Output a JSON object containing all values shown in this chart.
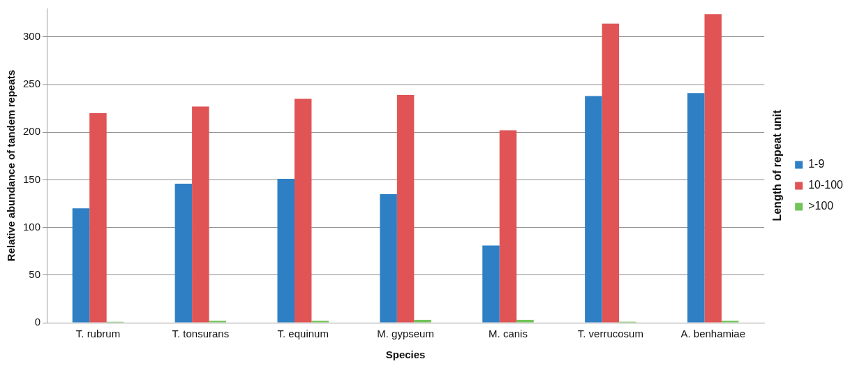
{
  "chart_data": {
    "type": "bar",
    "xlabel": "Species",
    "ylabel": "Relative abundance of tandem repeats",
    "legend_title": "Length of repeat unit",
    "categories": [
      "T. rubrum",
      "T. tonsurans",
      "T. equinum",
      "M. gypseum",
      "M. canis",
      "T. verrucosum",
      "A. benhamiae"
    ],
    "series": [
      {
        "name": "1-9",
        "color": "#2e7fc4",
        "values": [
          120,
          146,
          151,
          135,
          81,
          238,
          241
        ]
      },
      {
        "name": "10-100",
        "color": "#e05455",
        "values": [
          220,
          227,
          235,
          239,
          202,
          314,
          324
        ]
      },
      {
        "name": ">100",
        "color": "#72c459",
        "values": [
          1,
          2,
          2,
          3,
          3,
          1,
          2
        ]
      }
    ],
    "ylim": [
      0,
      330
    ],
    "yticks": [
      0,
      50,
      100,
      150,
      200,
      250,
      300
    ],
    "grid": "y",
    "legend": "right"
  }
}
